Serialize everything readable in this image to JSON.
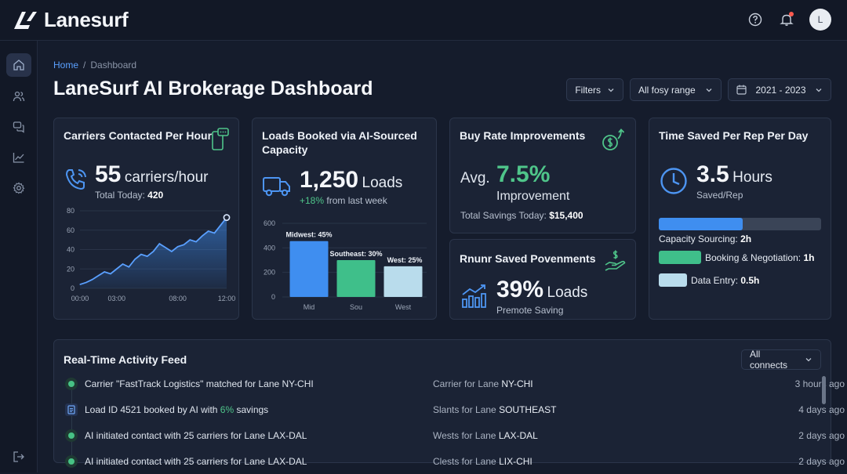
{
  "app": {
    "name": "Lanesurf",
    "avatar_initial": "L"
  },
  "breadcrumb": {
    "home": "Home",
    "sep": "/",
    "current": "Dashboard"
  },
  "page_title": "LaneSurf AI Brokerage Dashboard",
  "filters": {
    "filters_label": "Filters",
    "range_label": "All fosy range",
    "date_label": "2021 - 2023"
  },
  "cards": {
    "carriers": {
      "title": "Carriers Contacted Per Hour",
      "value": "55",
      "unit": "carriers/hour",
      "total_label": "Total Today:",
      "total_value": "420"
    },
    "loads": {
      "title": "Loads Booked via AI-Sourced Capacity",
      "value": "1,250",
      "unit": "Loads",
      "change": "+18%",
      "change_suffix": "from last week"
    },
    "buyrate": {
      "title": "Buy Rate Improvements",
      "avg_label": "Avg.",
      "value": "7.5%",
      "value_label": "Improvement",
      "savings_label": "Total Savings Today:",
      "savings_value": "$15,400"
    },
    "runner": {
      "title": "Rnunr Saved Povenments",
      "value": "39%",
      "unit": "Loads",
      "caption": "Premote Saving"
    },
    "timesaved": {
      "title": "Time Saved Per Rep Per Day",
      "value": "3.5",
      "unit": "Hours",
      "caption": "Saved/Rep",
      "breakdown": [
        {
          "label": "Capacity Sourcing:",
          "value": "2h",
          "hours": 2,
          "color": "#3f8ef0"
        },
        {
          "label": "Booking & Negotiation:",
          "value": "1h",
          "hours": 1,
          "color": "#3fbf8a"
        },
        {
          "label": "Data Entry:",
          "value": "0.5h",
          "hours": 0.5,
          "color": "#b9dcec"
        }
      ]
    }
  },
  "chart_data": [
    {
      "type": "area",
      "x_ticks": [
        "00:00",
        "03:00",
        "08:00",
        "12:00"
      ],
      "y_ticks": [
        "0",
        "20",
        "40",
        "60",
        "80"
      ],
      "ylim": [
        0,
        80
      ],
      "x": [
        0,
        0.5,
        1,
        1.5,
        2,
        2.5,
        3,
        3.5,
        4,
        4.5,
        5,
        5.5,
        6,
        6.5,
        7,
        7.5,
        8,
        8.5,
        9,
        9.5,
        10,
        10.5,
        11,
        11.5,
        12
      ],
      "values": [
        4,
        6,
        9,
        13,
        17,
        15,
        20,
        25,
        22,
        30,
        35,
        33,
        38,
        46,
        42,
        38,
        43,
        45,
        50,
        48,
        54,
        59,
        57,
        65,
        73
      ]
    },
    {
      "type": "bar",
      "categories": [
        "Mid",
        "Sou",
        "West"
      ],
      "values": [
        455,
        300,
        250
      ],
      "data_labels": [
        "Midwest: 45%",
        "Southeast: 30%",
        "West: 25%"
      ],
      "colors": [
        "#3f8ef0",
        "#3fbf8a",
        "#b9dcec"
      ],
      "y_ticks": [
        "0",
        "200",
        "400",
        "600"
      ],
      "ylim": [
        0,
        600
      ]
    }
  ],
  "feed": {
    "title": "Real-Time Activity Feed",
    "filter_label": "All connects",
    "rows": [
      {
        "main": "Carrier \"FastTrack Logistics\" matched for Lane NY-CHI",
        "mid_prefix": "Carrier for Lane",
        "mid_strong": "NY-CHI",
        "time": "3 hours ago",
        "icon": "dot-icon"
      },
      {
        "main_prefix": "Load ID 4521 booked by AI with",
        "main_green": "6%",
        "main_suffix": "savings",
        "mid_prefix": "Slants for Lane",
        "mid_strong": "SOUTHEAST",
        "time": "4 days ago",
        "icon": "document-icon"
      },
      {
        "main": "AI initiated contact with 25 carriers for Lane LAX-DAL",
        "mid_prefix": "Wests for Lane",
        "mid_strong": "LAX-DAL",
        "time": "2 days ago",
        "icon": "dot-icon"
      },
      {
        "main": "AI initiated contact with 25 carriers for Lane LAX-DAL",
        "mid_prefix": "Clests for Lane",
        "mid_strong": "LIX-CHI",
        "time": "2 days ago",
        "icon": "dot-icon"
      }
    ]
  }
}
